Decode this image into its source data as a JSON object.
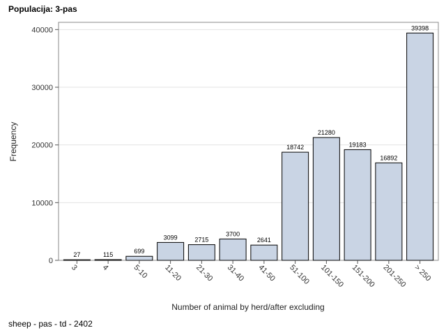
{
  "page": {
    "title": "Populacija: 3-pas",
    "footnote": "sheep - pas - td - 2402"
  },
  "chart_data": {
    "type": "bar",
    "title": "Populacija: 3-pas",
    "xlabel": "Number of animal by herd/after excluding",
    "ylabel": "Frequency",
    "categories": [
      "3",
      "4",
      "5-10",
      "11-20",
      "21-30",
      "31-40",
      "41-50",
      "51-100",
      "101-150",
      "151-200",
      "201-250",
      "> 250"
    ],
    "values": [
      27,
      115,
      699,
      3099,
      2715,
      3700,
      2641,
      18742,
      21280,
      19183,
      16892,
      39398
    ],
    "data_labels": [
      "27",
      "115",
      "699",
      "3099",
      "2715",
      "3700",
      "2641",
      "18742",
      "21280",
      "19183",
      "16892",
      "39398"
    ],
    "ylim": [
      0,
      41250
    ],
    "yticks": [
      0,
      10000,
      20000,
      30000,
      40000
    ],
    "ytick_labels": [
      "0",
      "10000",
      "20000",
      "30000",
      "40000"
    ],
    "grid": true,
    "bar_color": "#c9d4e4",
    "bar_edge_color": "#000000",
    "grid_color": "#e3e3e3"
  }
}
